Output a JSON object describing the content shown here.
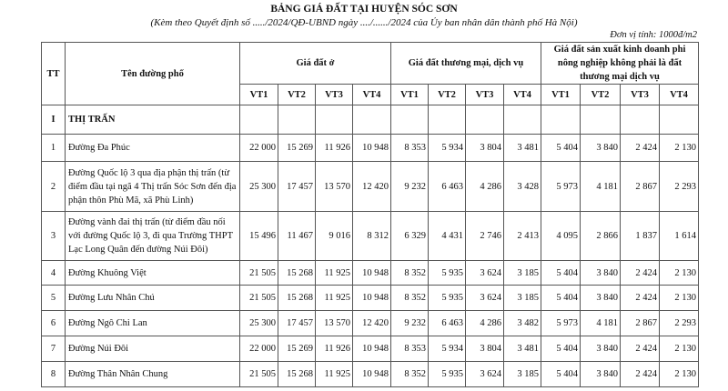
{
  "title": "BẢNG GIÁ ĐẤT TẠI HUYỆN SÓC SƠN",
  "subtitle": "(Kèm theo Quyết định số ...../2024/QĐ-UBND ngày ..../....../2024 của Ủy ban nhân dân thành phố Hà Nội)",
  "unit": "Đơn vị tính: 1000đ/m2",
  "headers": {
    "tt": "TT",
    "name": "Tên đường phố",
    "group1": "Giá đất ở",
    "group2": "Giá đất thương mại, dịch vụ",
    "group3": "Giá đất sản xuất kinh doanh phi nông nghiệp không phải là đất thương mại dịch vụ",
    "vt": [
      "VT1",
      "VT2",
      "VT3",
      "VT4",
      "VT1",
      "VT2",
      "VT3",
      "VT4",
      "VT1",
      "VT2",
      "VT3",
      "VT4"
    ]
  },
  "section": {
    "tt": "I",
    "name": "THỊ TRẤN"
  },
  "rows": [
    {
      "tt": "1",
      "name": "Đường Đa Phúc",
      "values": [
        "22 000",
        "15 269",
        "11 926",
        "10 948",
        "8 353",
        "5 934",
        "3 804",
        "3 481",
        "5 404",
        "3 840",
        "2 424",
        "2 130"
      ]
    },
    {
      "tt": "2",
      "name": "Đường Quốc lộ 3 qua địa phận thị trấn (từ điểm đầu tại ngã 4 Thị trấn Sóc Sơn đến địa phận thôn Phù Mã, xã Phù Linh)",
      "values": [
        "25 300",
        "17 457",
        "13 570",
        "12 420",
        "9 232",
        "6 463",
        "4 286",
        "3 428",
        "5 973",
        "4 181",
        "2 867",
        "2 293"
      ]
    },
    {
      "tt": "3",
      "name": "Đường vành đai thị trấn (từ điểm đầu nối với đường Quốc lộ 3, đi qua Trường THPT Lạc Long Quân đến đường Núi Đôi)",
      "values": [
        "15 496",
        "11 467",
        "9 016",
        "8 312",
        "6 329",
        "4 431",
        "2 746",
        "2 413",
        "4 095",
        "2 866",
        "1 837",
        "1 614"
      ]
    },
    {
      "tt": "4",
      "name": "Đường Khuông Việt",
      "values": [
        "21 505",
        "15 268",
        "11 925",
        "10 948",
        "8 352",
        "5 935",
        "3 624",
        "3 185",
        "5 404",
        "3 840",
        "2 424",
        "2 130"
      ]
    },
    {
      "tt": "5",
      "name": "Đường Lưu Nhân Chú",
      "values": [
        "21 505",
        "15 268",
        "11 925",
        "10 948",
        "8 352",
        "5 935",
        "3 624",
        "3 185",
        "5 404",
        "3 840",
        "2 424",
        "2 130"
      ]
    },
    {
      "tt": "6",
      "name": "Đường Ngô Chi Lan",
      "values": [
        "25 300",
        "17 457",
        "13 570",
        "12 420",
        "9 232",
        "6 463",
        "4 286",
        "3 482",
        "5 973",
        "4 181",
        "2 867",
        "2 293"
      ]
    },
    {
      "tt": "7",
      "name": "Đường Núi Đôi",
      "values": [
        "22 000",
        "15 269",
        "11 926",
        "10 948",
        "8 353",
        "5 934",
        "3 804",
        "3 481",
        "5 404",
        "3 840",
        "2 424",
        "2 130"
      ]
    },
    {
      "tt": "8",
      "name": "Đường Thân Nhân Chung",
      "values": [
        "21 505",
        "15 268",
        "11 925",
        "10 948",
        "8 352",
        "5 935",
        "3 624",
        "3 185",
        "5 404",
        "3 840",
        "2 424",
        "2 130"
      ]
    }
  ]
}
